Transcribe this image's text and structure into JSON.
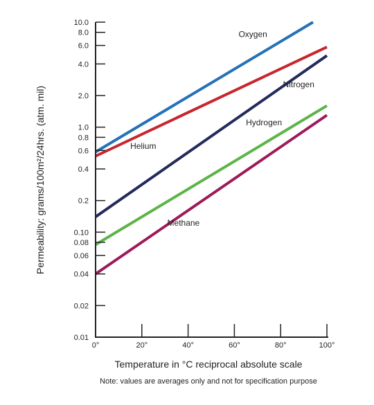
{
  "chart_data": {
    "type": "line",
    "xlabel": "Temperature in °C reciprocal absolute scale",
    "ylabel": "Permeability: grams/100m²/24hrs. (atm. mil)",
    "note": "Note: values are averages only and not for specification purpose",
    "x_axis": {
      "scale": "reciprocal absolute",
      "range": [
        0,
        100
      ],
      "ticks": [
        0,
        20,
        40,
        60,
        80,
        100
      ],
      "tick_labels": [
        "0°",
        "20°",
        "40°",
        "60°",
        "80°",
        "100°"
      ]
    },
    "y_axis": {
      "scale": "log",
      "range": [
        0.01,
        10.0
      ],
      "ticks": [
        0.01,
        0.02,
        0.04,
        0.06,
        0.08,
        0.1,
        0.2,
        0.4,
        0.6,
        0.8,
        1.0,
        2.0,
        4.0,
        6.0,
        8.0,
        10.0
      ],
      "tick_labels": [
        "0.01",
        "0.02",
        "0.04",
        "0.06",
        "0.08",
        "0.10",
        "0.2",
        "0.4",
        "0.6",
        "0.8",
        "1.0",
        "2.0",
        "4.0",
        "6.0",
        "8.0",
        "10.0"
      ]
    },
    "grid": false,
    "series": [
      {
        "name": "Oxygen",
        "color": "#2471b8",
        "points": [
          [
            0,
            0.58
          ],
          [
            94,
            10.0
          ]
        ]
      },
      {
        "name": "Helium",
        "color": "#c8262e",
        "points": [
          [
            0,
            0.53
          ],
          [
            100,
            5.8
          ]
        ]
      },
      {
        "name": "Nitrogen",
        "color": "#242a5c",
        "points": [
          [
            0,
            0.14
          ],
          [
            100,
            4.8
          ]
        ]
      },
      {
        "name": "Hydrogen",
        "color": "#5cb447",
        "points": [
          [
            0,
            0.076
          ],
          [
            100,
            1.6
          ]
        ]
      },
      {
        "name": "Methane",
        "color": "#9e1a5a",
        "points": [
          [
            0,
            0.04
          ],
          [
            100,
            1.3
          ]
        ]
      }
    ]
  }
}
